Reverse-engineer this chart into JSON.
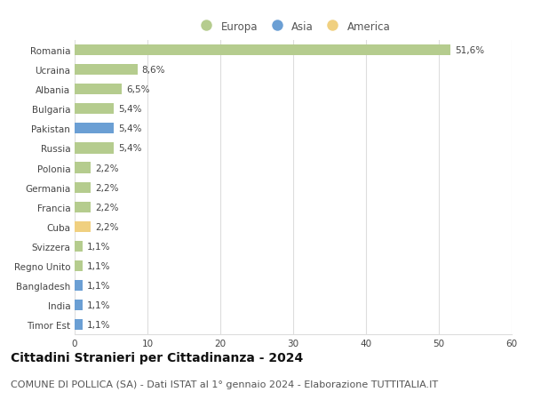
{
  "categories": [
    "Timor Est",
    "India",
    "Bangladesh",
    "Regno Unito",
    "Svizzera",
    "Cuba",
    "Francia",
    "Germania",
    "Polonia",
    "Russia",
    "Pakistan",
    "Bulgaria",
    "Albania",
    "Ucraina",
    "Romania"
  ],
  "values": [
    1.1,
    1.1,
    1.1,
    1.1,
    1.1,
    2.2,
    2.2,
    2.2,
    2.2,
    5.4,
    5.4,
    5.4,
    6.5,
    8.6,
    51.6
  ],
  "labels": [
    "1,1%",
    "1,1%",
    "1,1%",
    "1,1%",
    "1,1%",
    "2,2%",
    "2,2%",
    "2,2%",
    "2,2%",
    "5,4%",
    "5,4%",
    "5,4%",
    "6,5%",
    "8,6%",
    "51,6%"
  ],
  "colors": [
    "#6b9fd4",
    "#6b9fd4",
    "#6b9fd4",
    "#b5cc8e",
    "#b5cc8e",
    "#f0d080",
    "#b5cc8e",
    "#b5cc8e",
    "#b5cc8e",
    "#b5cc8e",
    "#6b9fd4",
    "#b5cc8e",
    "#b5cc8e",
    "#b5cc8e",
    "#b5cc8e"
  ],
  "legend": [
    {
      "label": "Europa",
      "color": "#b5cc8e"
    },
    {
      "label": "Asia",
      "color": "#6b9fd4"
    },
    {
      "label": "America",
      "color": "#f0d080"
    }
  ],
  "xlim": [
    0,
    60
  ],
  "xticks": [
    0,
    10,
    20,
    30,
    40,
    50,
    60
  ],
  "title": "Cittadini Stranieri per Cittadinanza - 2024",
  "subtitle": "COMUNE DI POLLICA (SA) - Dati ISTAT al 1° gennaio 2024 - Elaborazione TUTTITALIA.IT",
  "title_fontsize": 10,
  "subtitle_fontsize": 8,
  "bar_height": 0.55,
  "bg_color": "#ffffff",
  "grid_color": "#dddddd",
  "label_fontsize": 7.5,
  "tick_fontsize": 7.5,
  "legend_fontsize": 8.5
}
